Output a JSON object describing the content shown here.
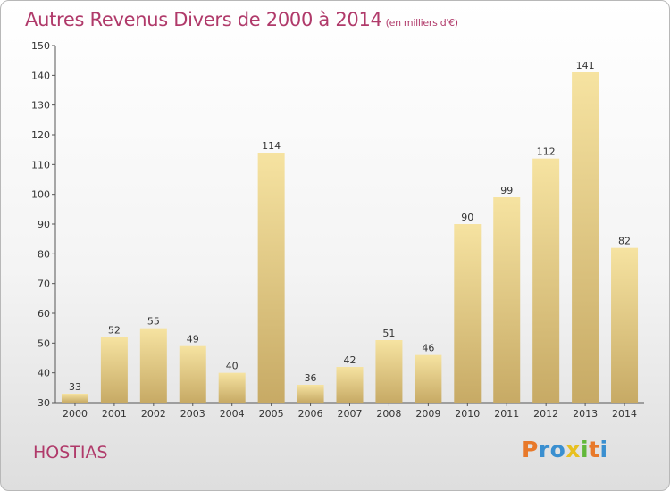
{
  "chart_data": {
    "type": "bar",
    "title": "Autres Revenus Divers de 2000 à 2014",
    "subtitle": "(en milliers d'€)",
    "categories": [
      "2000",
      "2001",
      "2002",
      "2003",
      "2004",
      "2005",
      "2006",
      "2007",
      "2008",
      "2009",
      "2010",
      "2011",
      "2012",
      "2013",
      "2014"
    ],
    "values": [
      33,
      52,
      55,
      49,
      40,
      114,
      36,
      42,
      51,
      46,
      90,
      99,
      112,
      141,
      82
    ],
    "ylim": [
      30,
      150
    ],
    "yticks": [
      30,
      40,
      50,
      60,
      70,
      80,
      90,
      100,
      110,
      120,
      130,
      140,
      150
    ],
    "grid": false,
    "xlabel": "",
    "ylabel": "",
    "bar_color": "#e6cc85"
  },
  "commune": "HOSTIAS",
  "logo": {
    "letters": [
      "P",
      "r",
      "o",
      "x",
      "i",
      "t",
      "i"
    ],
    "colors": [
      "#e8792a",
      "#3a8fd0",
      "#3a8fd0",
      "#e8c020",
      "#62b83a",
      "#e8792a",
      "#3a8fd0"
    ]
  }
}
